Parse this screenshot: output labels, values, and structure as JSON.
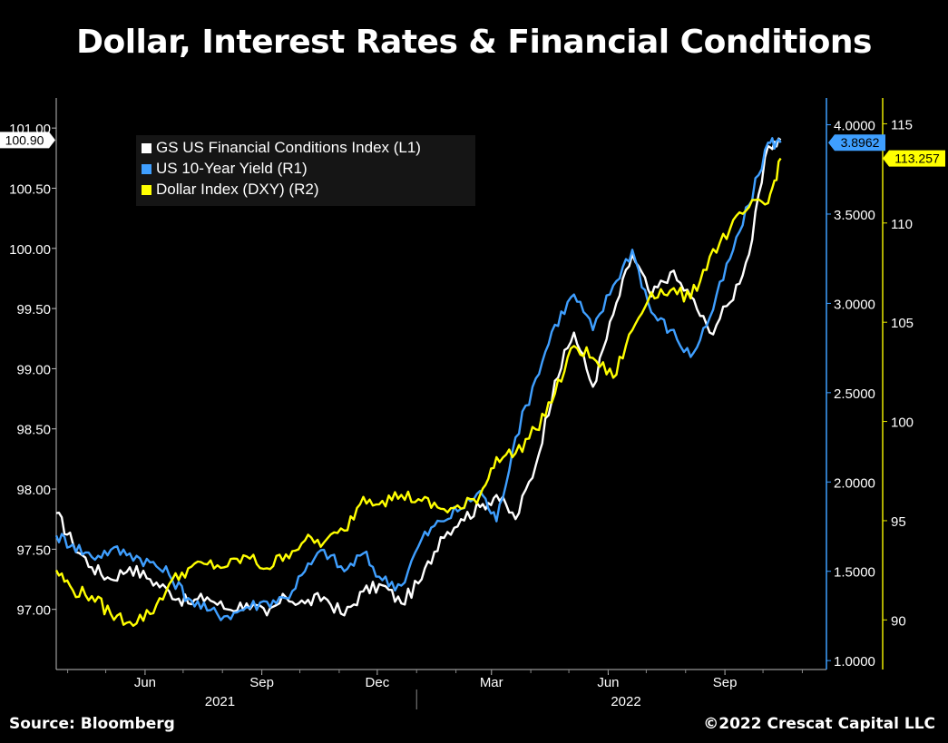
{
  "title": "Dollar, Interest Rates & Financial Conditions",
  "footer": {
    "source": "Source: Bloomberg",
    "copyright": "©2022 Crescat Capital LLC"
  },
  "chart_data": {
    "type": "line",
    "title": "Dollar, Interest Rates & Financial Conditions",
    "x_range": [
      "2021-03-23",
      "2022-11-20"
    ],
    "x_ticks": [
      {
        "label": "Jun",
        "date": "2021-06-01"
      },
      {
        "label": "Sep",
        "date": "2021-09-01"
      },
      {
        "label": "Dec",
        "date": "2021-12-01"
      },
      {
        "label": "Mar",
        "date": "2022-03-01"
      },
      {
        "label": "Jun",
        "date": "2022-06-01"
      },
      {
        "label": "Sep",
        "date": "2022-09-01"
      }
    ],
    "year_labels": [
      {
        "label": "2021",
        "date": "2021-07-30"
      },
      {
        "label": "2022",
        "date": "2022-06-15"
      }
    ],
    "axes": {
      "L1": {
        "min": 96.5,
        "max": 101.25,
        "ticks": [
          97.0,
          97.5,
          98.0,
          98.5,
          99.0,
          99.5,
          100.0,
          100.5,
          101.0
        ],
        "tick_labels": [
          "97.00",
          "97.50",
          "98.00",
          "98.50",
          "99.00",
          "99.50",
          "100.00",
          "100.50",
          "101.00"
        ]
      },
      "R1": {
        "min": 0.95,
        "max": 4.15,
        "ticks": [
          1.0,
          1.5,
          2.0,
          2.5,
          3.0,
          3.5,
          4.0
        ],
        "tick_labels": [
          "1.0000",
          "1.5000",
          "2.0000",
          "2.5000",
          "3.0000",
          "3.5000",
          "4.0000"
        ]
      },
      "R2": {
        "min": 87.5,
        "max": 116.3,
        "ticks": [
          90,
          95,
          100,
          105,
          110,
          115
        ],
        "tick_labels": [
          "90",
          "95",
          "100",
          "105",
          "110",
          "115"
        ]
      }
    },
    "grid": false,
    "legend_position": "top-left",
    "series": [
      {
        "name": "GS US Financial Conditions Index (L1)",
        "axis": "L1",
        "color": "#ffffff",
        "last_value_label": "100.90",
        "x": [
          "2021-03-23",
          "2021-04-05",
          "2021-04-20",
          "2021-05-05",
          "2021-05-20",
          "2021-06-05",
          "2021-06-20",
          "2021-07-05",
          "2021-07-20",
          "2021-08-05",
          "2021-08-20",
          "2021-09-05",
          "2021-09-20",
          "2021-10-05",
          "2021-10-20",
          "2021-11-05",
          "2021-11-20",
          "2021-12-05",
          "2021-12-20",
          "2022-01-05",
          "2022-01-20",
          "2022-02-05",
          "2022-02-20",
          "2022-03-05",
          "2022-03-20",
          "2022-04-05",
          "2022-04-20",
          "2022-05-05",
          "2022-05-20",
          "2022-06-05",
          "2022-06-20",
          "2022-07-05",
          "2022-07-20",
          "2022-08-05",
          "2022-08-20",
          "2022-09-05",
          "2022-09-20",
          "2022-10-05",
          "2022-10-15"
        ],
        "values": [
          97.8,
          97.55,
          97.35,
          97.25,
          97.35,
          97.25,
          97.15,
          97.05,
          97.1,
          97.0,
          97.05,
          96.95,
          97.1,
          97.05,
          97.1,
          96.95,
          97.15,
          97.2,
          97.05,
          97.25,
          97.6,
          97.75,
          97.85,
          97.95,
          97.75,
          98.2,
          98.9,
          99.3,
          98.85,
          99.45,
          99.95,
          99.6,
          99.8,
          99.6,
          99.3,
          99.55,
          99.95,
          100.85,
          100.9
        ]
      },
      {
        "name": "US 10-Year Yield (R1)",
        "axis": "R1",
        "color": "#3f9fff",
        "last_value_label": "3.8962",
        "x": [
          "2021-03-23",
          "2021-04-05",
          "2021-04-20",
          "2021-05-05",
          "2021-05-20",
          "2021-06-05",
          "2021-06-20",
          "2021-07-05",
          "2021-07-20",
          "2021-08-05",
          "2021-08-20",
          "2021-09-05",
          "2021-09-20",
          "2021-10-05",
          "2021-10-20",
          "2021-11-05",
          "2021-11-20",
          "2021-12-05",
          "2021-12-20",
          "2022-01-05",
          "2022-01-20",
          "2022-02-05",
          "2022-02-20",
          "2022-03-05",
          "2022-03-20",
          "2022-04-05",
          "2022-04-20",
          "2022-05-05",
          "2022-05-20",
          "2022-06-05",
          "2022-06-20",
          "2022-07-05",
          "2022-07-20",
          "2022-08-05",
          "2022-08-20",
          "2022-09-05",
          "2022-09-20",
          "2022-10-05",
          "2022-10-15"
        ],
        "values": [
          1.7,
          1.65,
          1.58,
          1.62,
          1.6,
          1.55,
          1.48,
          1.35,
          1.28,
          1.25,
          1.3,
          1.33,
          1.35,
          1.5,
          1.62,
          1.5,
          1.6,
          1.45,
          1.42,
          1.68,
          1.78,
          1.85,
          1.95,
          1.78,
          2.25,
          2.58,
          2.88,
          3.05,
          2.85,
          3.1,
          3.3,
          2.95,
          2.85,
          2.7,
          2.92,
          3.25,
          3.55,
          3.9,
          3.9
        ]
      },
      {
        "name": "Dollar Index (DXY) (R2)",
        "axis": "R2",
        "color": "#ffff00",
        "last_value_label": "113.257",
        "x": [
          "2021-03-23",
          "2021-04-05",
          "2021-04-20",
          "2021-05-05",
          "2021-05-20",
          "2021-06-05",
          "2021-06-20",
          "2021-07-05",
          "2021-07-20",
          "2021-08-05",
          "2021-08-20",
          "2021-09-05",
          "2021-09-20",
          "2021-10-05",
          "2021-10-20",
          "2021-11-05",
          "2021-11-20",
          "2021-12-05",
          "2021-12-20",
          "2022-01-05",
          "2022-01-20",
          "2022-02-05",
          "2022-02-20",
          "2022-03-05",
          "2022-03-20",
          "2022-04-05",
          "2022-04-20",
          "2022-05-05",
          "2022-05-20",
          "2022-06-05",
          "2022-06-20",
          "2022-07-05",
          "2022-07-20",
          "2022-08-05",
          "2022-08-20",
          "2022-09-05",
          "2022-09-20",
          "2022-10-05",
          "2022-10-15"
        ],
        "values": [
          92.5,
          91.5,
          91.2,
          90.3,
          89.9,
          90.3,
          91.8,
          92.6,
          92.8,
          92.7,
          93.2,
          92.6,
          93.3,
          94.0,
          93.9,
          94.5,
          96.2,
          96.0,
          96.3,
          96.0,
          95.6,
          95.6,
          96.3,
          98.2,
          98.4,
          99.6,
          101.4,
          103.8,
          103.2,
          102.2,
          104.6,
          106.5,
          106.6,
          106.2,
          108.3,
          109.7,
          110.8,
          111.0,
          113.257
        ]
      }
    ]
  }
}
